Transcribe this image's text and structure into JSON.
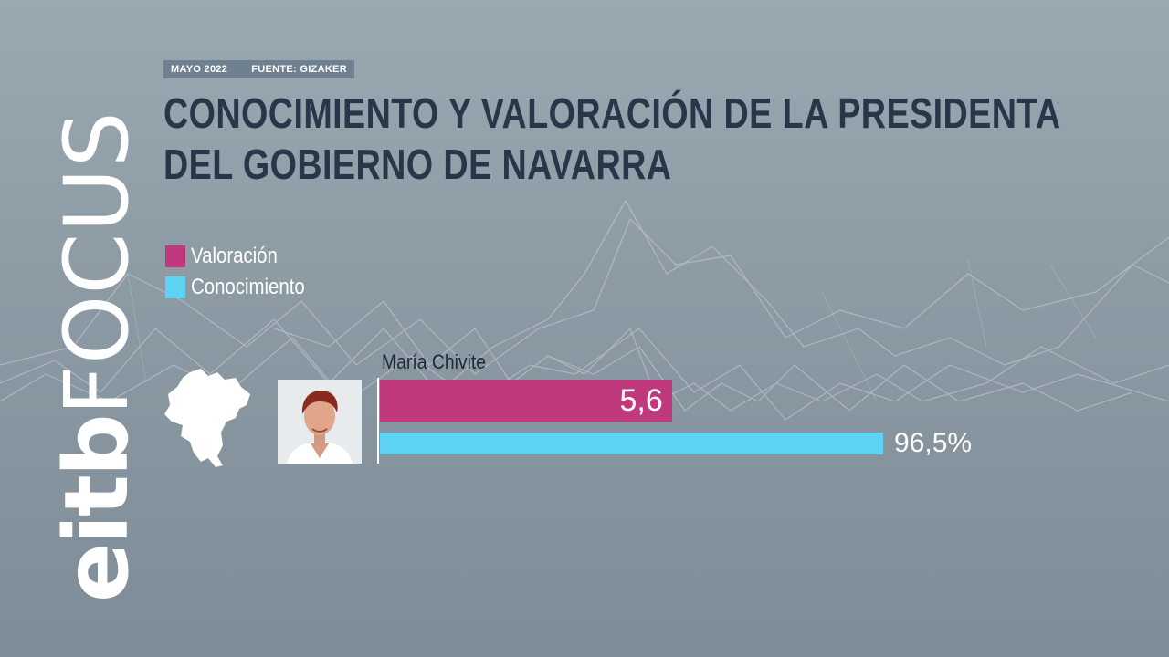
{
  "header": {
    "date": "MAYO 2022",
    "source": "FUENTE: GIZAKER"
  },
  "chart_data": {
    "type": "bar",
    "orientation": "horizontal",
    "title_line1": "CONOCIMIENTO Y VALORACIÓN DE LA PRESIDENTA",
    "title_line2": "DEL GOBIERNO DE NAVARRA",
    "categories": [
      "María Chivite"
    ],
    "series": [
      {
        "name": "Valoración",
        "values": [
          5.6
        ],
        "label": "5,6",
        "scale_max": 10,
        "color": "#c0397d"
      },
      {
        "name": "Conocimiento",
        "values": [
          96.5
        ],
        "label": "96,5%",
        "scale_max": 100,
        "color": "#5fd3f3"
      }
    ],
    "legend_position": "top-left",
    "grid": false
  },
  "brand": {
    "part1": "eitb",
    "part2": "FOCUS"
  },
  "colors": {
    "title": "#26374a",
    "source_bar": "#6f8190",
    "background": "#8c9aa4"
  },
  "icons": {
    "map": "navarra-map-icon",
    "photo": "person-photo"
  }
}
